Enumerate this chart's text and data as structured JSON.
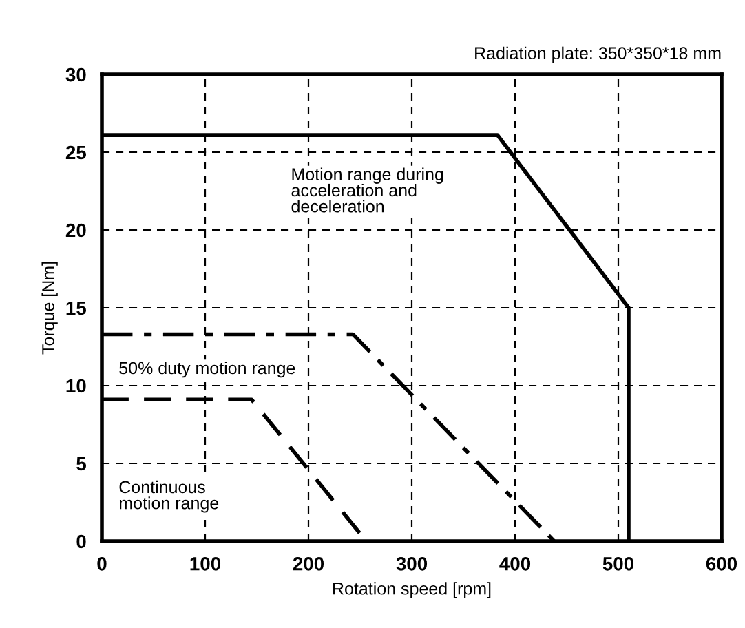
{
  "chart_data": {
    "type": "line",
    "title": "Radiation plate: 350*350*18 mm",
    "xlabel": "Rotation speed [rpm]",
    "ylabel": "Torque [Nm]",
    "xlim": [
      0,
      600
    ],
    "ylim": [
      0,
      30
    ],
    "xticks": [
      0,
      100,
      200,
      300,
      400,
      500,
      600
    ],
    "yticks": [
      0,
      5,
      10,
      15,
      20,
      25,
      30
    ],
    "grid": true,
    "marker": "none",
    "series": [
      {
        "color": "#000000",
        "line_style": "solid",
        "x": [
          0,
          383,
          510,
          510
        ],
        "values": [
          26.1,
          26.1,
          15,
          0
        ]
      },
      {
        "color": "#000000",
        "line_style": "dashdot",
        "x": [
          0,
          243,
          438
        ],
        "values": [
          13.3,
          13.3,
          0
        ]
      },
      {
        "color": "#000000",
        "line_style": "dashed",
        "x": [
          0,
          145,
          256
        ],
        "values": [
          9.1,
          9.1,
          0
        ]
      }
    ],
    "annotations": [
      "Motion range during\nacceleration and\ndeceleration",
      "50% duty motion range",
      "Continuous\nmotion range"
    ]
  }
}
